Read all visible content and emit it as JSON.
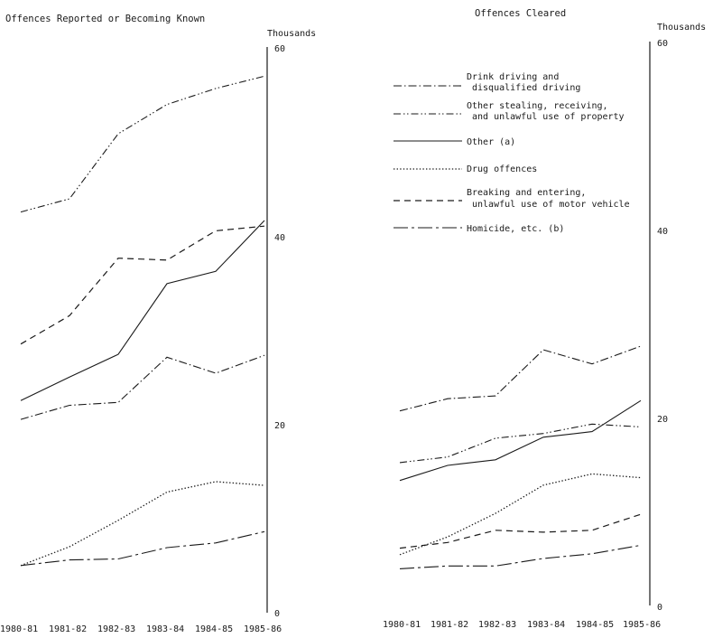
{
  "chart_data": [
    {
      "type": "line",
      "title": "Offences Reported or Becoming Known",
      "ylabel": "Thousands",
      "ylim": [
        0,
        60
      ],
      "yticks": [
        "0",
        "20",
        "40",
        "60"
      ],
      "categories": [
        "1980-81",
        "1981-82",
        "1982-83",
        "1983-84",
        "1984-85",
        "1985-86"
      ],
      "series": [
        {
          "style": "dashdotdot",
          "values": [
            42.5,
            43.9,
            50.8,
            53.9,
            55.6,
            56.9
          ]
        },
        {
          "style": "dashed",
          "values": [
            28.5,
            31.5,
            37.6,
            37.4,
            40.5,
            41.0
          ]
        },
        {
          "style": "solid",
          "values": [
            22.5,
            25.0,
            27.4,
            34.9,
            36.2,
            41.6
          ]
        },
        {
          "style": "dashdot",
          "values": [
            20.5,
            22.0,
            22.3,
            27.1,
            25.4,
            27.3
          ]
        },
        {
          "style": "dotted",
          "values": [
            5.0,
            7.0,
            9.8,
            12.8,
            13.9,
            13.5
          ]
        },
        {
          "style": "longdash",
          "values": [
            5.0,
            5.6,
            5.7,
            6.9,
            7.4,
            8.6
          ]
        }
      ]
    },
    {
      "type": "line",
      "title": "Offences Cleared",
      "ylabel": "Thousands",
      "ylim": [
        0,
        60
      ],
      "yticks": [
        "0",
        "20",
        "40",
        "60"
      ],
      "categories": [
        "1980-81",
        "1981-82",
        "1982-83",
        "1983-84",
        "1984-85",
        "1985-86"
      ],
      "legend": [
        {
          "style": "dashdot",
          "lines": [
            "Drink driving and",
            "disqualified driving"
          ]
        },
        {
          "style": "dashdotdot",
          "lines": [
            "Other stealing, receiving,",
            "and unlawful use of property"
          ]
        },
        {
          "style": "solid",
          "lines": [
            "Other (a)"
          ]
        },
        {
          "style": "dotted",
          "lines": [
            "Drug offences"
          ]
        },
        {
          "style": "dashed",
          "lines": [
            "Breaking and entering,",
            "unlawful use of motor vehicle"
          ]
        },
        {
          "style": "longdash",
          "lines": [
            "Homicide, etc. (b)"
          ]
        }
      ],
      "series": [
        {
          "style": "dashdot",
          "values": [
            20.7,
            22.0,
            22.3,
            27.2,
            25.7,
            27.6
          ]
        },
        {
          "style": "dashdotdot",
          "values": [
            15.2,
            15.8,
            17.8,
            18.3,
            19.3,
            19.0
          ]
        },
        {
          "style": "solid",
          "values": [
            13.3,
            14.9,
            15.5,
            17.9,
            18.5,
            21.8
          ]
        },
        {
          "style": "dotted",
          "values": [
            5.4,
            7.3,
            9.8,
            12.8,
            14.0,
            13.6
          ]
        },
        {
          "style": "dashed",
          "values": [
            6.1,
            6.7,
            8.0,
            7.8,
            8.0,
            9.7
          ]
        },
        {
          "style": "longdash",
          "values": [
            3.9,
            4.2,
            4.2,
            5.0,
            5.5,
            6.4
          ]
        }
      ]
    }
  ]
}
